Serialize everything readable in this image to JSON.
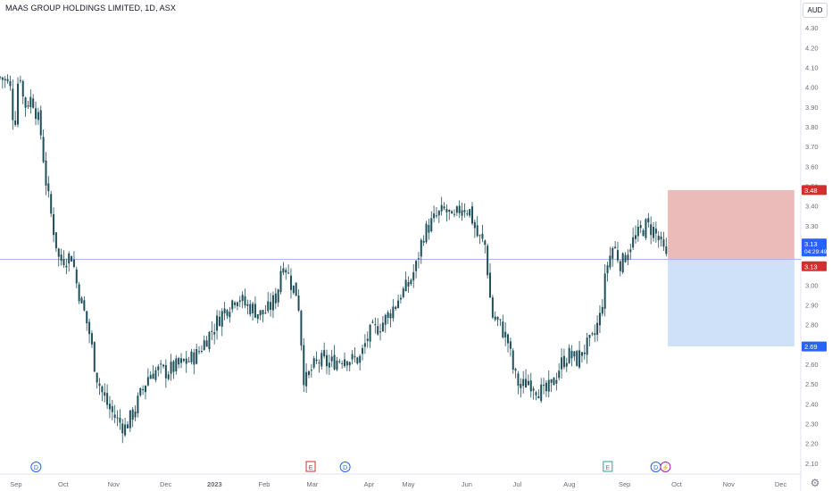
{
  "header": {
    "title": "MAAS GROUP HOLDINGS LIMITED, 1D, ASX",
    "currency": "AUD"
  },
  "colors": {
    "up": "#26a69a",
    "down": "#2a2e39",
    "candle": "#1f4f5a",
    "stop_zone": "#e8b4b0",
    "target_zone": "#c9def8",
    "price_line": "#a7b4e8",
    "label_stop": "#d32f2f",
    "label_current": "#2962ff",
    "label_target": "#2962ff"
  },
  "chart_data": {
    "type": "candlestick",
    "title": "MAAS GROUP HOLDINGS LIMITED, 1D, ASX",
    "ylim": [
      2.05,
      4.35
    ],
    "y_ticks": [
      "4.30",
      "4.20",
      "4.10",
      "4.00",
      "3.90",
      "3.80",
      "3.70",
      "3.60",
      "3.50",
      "3.40",
      "3.30",
      "3.20",
      "3.10",
      "3.00",
      "2.90",
      "2.80",
      "2.70",
      "2.60",
      "2.50",
      "2.40",
      "2.30",
      "2.20",
      "2.10"
    ],
    "x_ticks": [
      {
        "label": "Sep",
        "t": 0.02
      },
      {
        "label": "Oct",
        "t": 0.079
      },
      {
        "label": "Nov",
        "t": 0.142
      },
      {
        "label": "Dec",
        "t": 0.207
      },
      {
        "label": "2023",
        "t": 0.268
      },
      {
        "label": "Feb",
        "t": 0.33
      },
      {
        "label": "Mar",
        "t": 0.39
      },
      {
        "label": "Apr",
        "t": 0.461
      },
      {
        "label": "May",
        "t": 0.51
      },
      {
        "label": "Jun",
        "t": 0.583
      },
      {
        "label": "Jul",
        "t": 0.646
      },
      {
        "label": "Aug",
        "t": 0.711
      },
      {
        "label": "Sep",
        "t": 0.78
      },
      {
        "label": "Oct",
        "t": 0.845
      },
      {
        "label": "Nov",
        "t": 0.91
      },
      {
        "label": "Dec",
        "t": 0.975
      }
    ],
    "anchors": [
      [
        0.0,
        4.05
      ],
      [
        0.012,
        4.02
      ],
      [
        0.018,
        3.78
      ],
      [
        0.024,
        4.12
      ],
      [
        0.03,
        3.9
      ],
      [
        0.04,
        3.95
      ],
      [
        0.05,
        3.8
      ],
      [
        0.058,
        3.5
      ],
      [
        0.066,
        3.3
      ],
      [
        0.074,
        3.12
      ],
      [
        0.082,
        3.14
      ],
      [
        0.09,
        3.15
      ],
      [
        0.096,
        3.0
      ],
      [
        0.104,
        2.88
      ],
      [
        0.112,
        2.75
      ],
      [
        0.12,
        2.55
      ],
      [
        0.128,
        2.45
      ],
      [
        0.136,
        2.38
      ],
      [
        0.146,
        2.32
      ],
      [
        0.156,
        2.28
      ],
      [
        0.166,
        2.35
      ],
      [
        0.176,
        2.45
      ],
      [
        0.186,
        2.55
      ],
      [
        0.196,
        2.57
      ],
      [
        0.206,
        2.56
      ],
      [
        0.216,
        2.58
      ],
      [
        0.226,
        2.6
      ],
      [
        0.236,
        2.62
      ],
      [
        0.246,
        2.65
      ],
      [
        0.256,
        2.72
      ],
      [
        0.266,
        2.78
      ],
      [
        0.276,
        2.85
      ],
      [
        0.286,
        2.9
      ],
      [
        0.296,
        2.95
      ],
      [
        0.306,
        2.9
      ],
      [
        0.316,
        2.88
      ],
      [
        0.326,
        2.85
      ],
      [
        0.336,
        2.88
      ],
      [
        0.346,
        2.95
      ],
      [
        0.352,
        3.12
      ],
      [
        0.358,
        3.08
      ],
      [
        0.364,
        3.0
      ],
      [
        0.372,
        2.95
      ],
      [
        0.38,
        2.5
      ],
      [
        0.39,
        2.58
      ],
      [
        0.4,
        2.62
      ],
      [
        0.41,
        2.6
      ],
      [
        0.42,
        2.62
      ],
      [
        0.43,
        2.64
      ],
      [
        0.44,
        2.62
      ],
      [
        0.45,
        2.63
      ],
      [
        0.46,
        2.75
      ],
      [
        0.47,
        2.78
      ],
      [
        0.48,
        2.82
      ],
      [
        0.49,
        2.88
      ],
      [
        0.5,
        2.95
      ],
      [
        0.51,
        3.0
      ],
      [
        0.52,
        3.1
      ],
      [
        0.528,
        3.25
      ],
      [
        0.536,
        3.3
      ],
      [
        0.546,
        3.35
      ],
      [
        0.556,
        3.38
      ],
      [
        0.566,
        3.32
      ],
      [
        0.576,
        3.4
      ],
      [
        0.586,
        3.38
      ],
      [
        0.596,
        3.25
      ],
      [
        0.606,
        3.2
      ],
      [
        0.614,
        2.85
      ],
      [
        0.624,
        2.8
      ],
      [
        0.634,
        2.72
      ],
      [
        0.642,
        2.55
      ],
      [
        0.65,
        2.48
      ],
      [
        0.66,
        2.52
      ],
      [
        0.67,
        2.48
      ],
      [
        0.68,
        2.45
      ],
      [
        0.69,
        2.5
      ],
      [
        0.7,
        2.6
      ],
      [
        0.71,
        2.65
      ],
      [
        0.72,
        2.62
      ],
      [
        0.73,
        2.68
      ],
      [
        0.74,
        2.72
      ],
      [
        0.75,
        2.85
      ],
      [
        0.758,
        3.1
      ],
      [
        0.766,
        3.2
      ],
      [
        0.776,
        3.1
      ],
      [
        0.786,
        3.2
      ],
      [
        0.796,
        3.25
      ],
      [
        0.806,
        3.3
      ],
      [
        0.816,
        3.28
      ],
      [
        0.826,
        3.2
      ],
      [
        0.832,
        3.13
      ]
    ],
    "position": {
      "type": "short",
      "entry": 3.13,
      "stop": 3.48,
      "target": 2.69,
      "t_start": 0.834,
      "t_end": 0.992
    },
    "price_labels": {
      "stop": "3.48",
      "current": "3.13",
      "countdown": "04:29:49",
      "entry": "3.13",
      "target": "2.69"
    },
    "events": [
      {
        "type": "D",
        "t": 0.045,
        "color": "#2962ff"
      },
      {
        "type": "E",
        "t": 0.388,
        "color": "#d32f2f"
      },
      {
        "type": "D",
        "t": 0.431,
        "color": "#2962ff"
      },
      {
        "type": "E",
        "t": 0.759,
        "color": "#26a69a"
      },
      {
        "type": "D",
        "t": 0.819,
        "color": "#2962ff"
      },
      {
        "type": "⚡",
        "t": 0.831,
        "color": "#9c27b0"
      }
    ]
  }
}
